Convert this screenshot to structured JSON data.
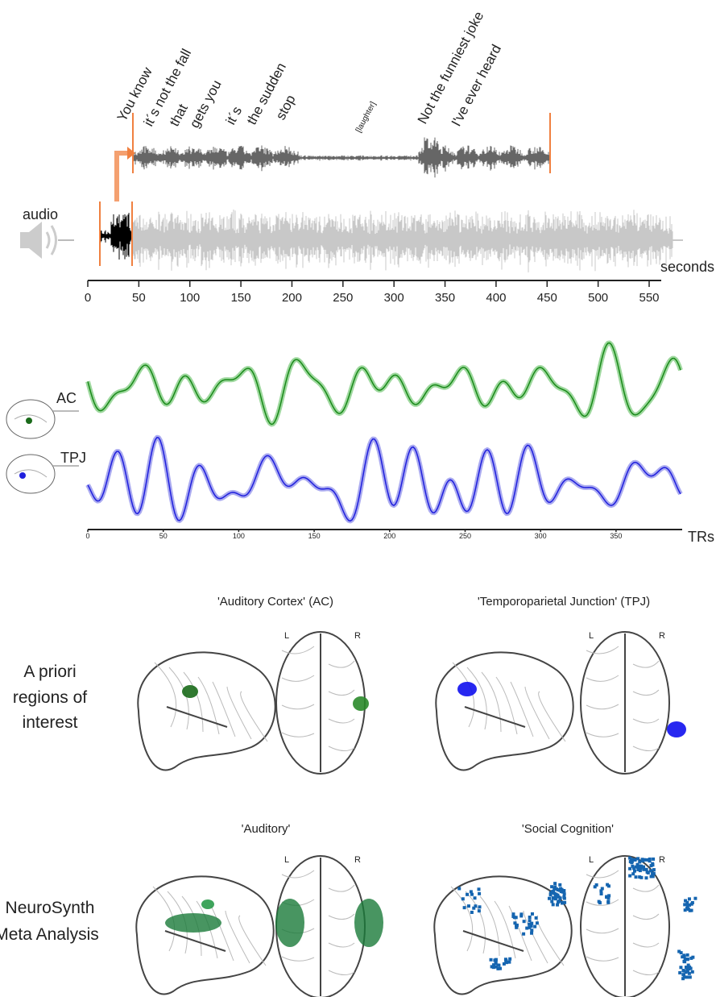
{
  "transcript": {
    "words": [
      "You know",
      "it´s not the fall",
      "that",
      "gets you",
      "it´s",
      "the sudden",
      "stop",
      "[laughter]",
      "Not the funniest joke",
      "I've ever heard"
    ]
  },
  "audio": {
    "label": "audio",
    "axis_label": "seconds",
    "ticks": [
      0,
      50,
      100,
      150,
      200,
      250,
      300,
      350,
      400,
      450,
      500,
      550
    ]
  },
  "timecourses": {
    "regions": [
      "AC",
      "TPJ"
    ],
    "axis_label": "TRs",
    "ticks": [
      0,
      50,
      100,
      150,
      200,
      250,
      300,
      350
    ]
  },
  "rois": {
    "row_label": [
      "A priori",
      "regions of",
      "interest"
    ],
    "maps": [
      {
        "title": "'Auditory Cortex' (AC)",
        "left": "L",
        "right": "R"
      },
      {
        "title": "'Temporoparietal Junction' (TPJ)",
        "left": "L",
        "right": "R"
      }
    ]
  },
  "neurosynth": {
    "row_label": [
      "NeuroSynth",
      "Meta Analysis"
    ],
    "maps": [
      {
        "title": "'Auditory'",
        "left": "L",
        "right": "R"
      },
      {
        "title": "'Social Cognition'",
        "left": "L",
        "right": "R"
      }
    ]
  }
}
